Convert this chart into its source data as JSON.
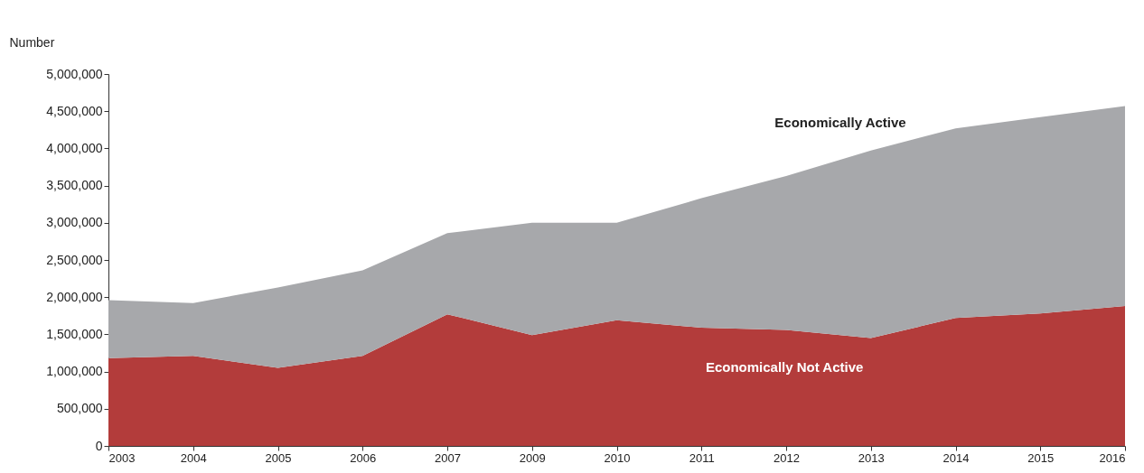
{
  "chart_data": {
    "type": "area",
    "stacked": true,
    "ylabel": "Number",
    "categories": [
      "2003",
      "2004",
      "2005",
      "2006",
      "2007",
      "2009",
      "2010",
      "2011",
      "2012",
      "2013",
      "2014",
      "2015",
      "2016"
    ],
    "series": [
      {
        "name": "Economically Not Active",
        "color": "#b33c3b",
        "values": [
          1180000,
          1210000,
          1050000,
          1210000,
          1770000,
          1490000,
          1690000,
          1590000,
          1560000,
          1450000,
          1720000,
          1780000,
          1880000
        ]
      },
      {
        "name": "Economically Active",
        "color": "#a7a8ab",
        "values": [
          780000,
          710000,
          1080000,
          1150000,
          1090000,
          1510000,
          1310000,
          1740000,
          2070000,
          2520000,
          2550000,
          2640000,
          2690000
        ]
      }
    ],
    "ylim": [
      0,
      5000000
    ],
    "yticks": [
      0,
      {
        "value": 500000,
        "label": "500,000"
      },
      {
        "value": 1000000,
        "label": "1,000,000"
      },
      {
        "value": 1500000,
        "label": "1,500,000"
      },
      {
        "value": 2000000,
        "label": "2,000,000"
      },
      {
        "value": 2500000,
        "label": "2,500,000"
      },
      {
        "value": 3000000,
        "label": "3,000,000"
      },
      {
        "value": 3500000,
        "label": "3,500,000"
      },
      {
        "value": 4000000,
        "label": "4,000,000"
      },
      {
        "value": 4500000,
        "label": "4,500,000"
      },
      {
        "value": 5000000,
        "label": "5,000,000"
      }
    ],
    "grid": false,
    "legend": false
  }
}
